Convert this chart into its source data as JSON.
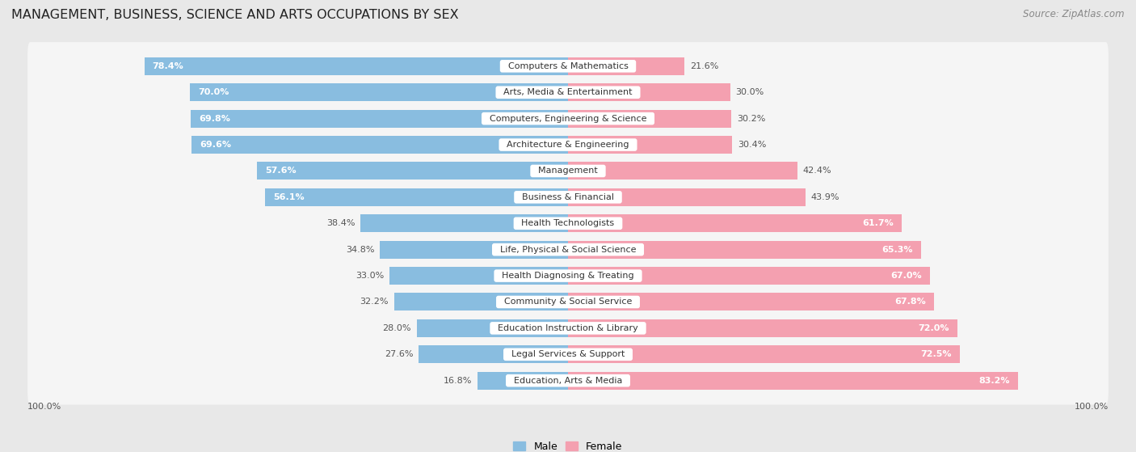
{
  "title": "MANAGEMENT, BUSINESS, SCIENCE AND ARTS OCCUPATIONS BY SEX",
  "source": "Source: ZipAtlas.com",
  "categories": [
    "Computers & Mathematics",
    "Arts, Media & Entertainment",
    "Computers, Engineering & Science",
    "Architecture & Engineering",
    "Management",
    "Business & Financial",
    "Health Technologists",
    "Life, Physical & Social Science",
    "Health Diagnosing & Treating",
    "Community & Social Service",
    "Education Instruction & Library",
    "Legal Services & Support",
    "Education, Arts & Media"
  ],
  "male_pct": [
    78.4,
    70.0,
    69.8,
    69.6,
    57.6,
    56.1,
    38.4,
    34.8,
    33.0,
    32.2,
    28.0,
    27.6,
    16.8
  ],
  "female_pct": [
    21.6,
    30.0,
    30.2,
    30.4,
    42.4,
    43.9,
    61.7,
    65.3,
    67.0,
    67.8,
    72.0,
    72.5,
    83.2
  ],
  "male_color": "#89bde0",
  "female_color": "#f4a0b0",
  "bg_color": "#e8e8e8",
  "bar_bg_color": "#f5f5f5",
  "title_fontsize": 11.5,
  "source_fontsize": 8.5,
  "cat_fontsize": 8,
  "pct_fontsize": 8
}
